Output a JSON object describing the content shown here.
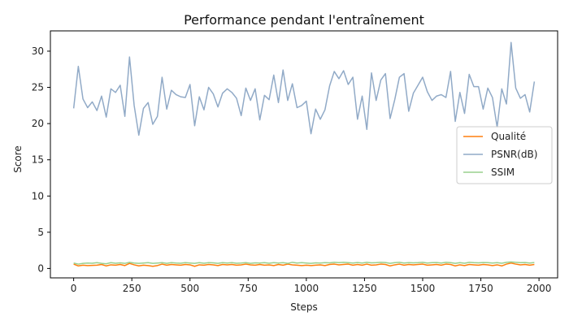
{
  "chart_data": {
    "type": "line",
    "title": "Performance pendant l'entraînement",
    "xlabel": "Steps",
    "ylabel": "Score",
    "xlim": [
      -100,
      2080
    ],
    "ylim": [
      -1.3,
      32.8
    ],
    "xticks": [
      0,
      250,
      500,
      750,
      1000,
      1250,
      1500,
      1750,
      2000
    ],
    "yticks": [
      0,
      5,
      10,
      15,
      20,
      25,
      30
    ],
    "grid": false,
    "legend_position": "center-right",
    "x": [
      0,
      20,
      40,
      60,
      80,
      100,
      120,
      140,
      160,
      180,
      200,
      220,
      240,
      260,
      280,
      300,
      320,
      340,
      360,
      380,
      400,
      420,
      440,
      460,
      480,
      500,
      520,
      540,
      560,
      580,
      600,
      620,
      640,
      660,
      680,
      700,
      720,
      740,
      760,
      780,
      800,
      820,
      840,
      860,
      880,
      900,
      920,
      940,
      960,
      980,
      1000,
      1020,
      1040,
      1060,
      1080,
      1100,
      1120,
      1140,
      1160,
      1180,
      1200,
      1220,
      1240,
      1260,
      1280,
      1300,
      1320,
      1340,
      1360,
      1380,
      1400,
      1420,
      1440,
      1460,
      1480,
      1500,
      1520,
      1540,
      1560,
      1580,
      1600,
      1620,
      1640,
      1660,
      1680,
      1700,
      1720,
      1740,
      1760,
      1780,
      1800,
      1820,
      1840,
      1860,
      1880,
      1900,
      1920,
      1940,
      1960,
      1980
    ],
    "series": [
      {
        "name": "Qualité",
        "color": "#ff7f0e",
        "values": [
          0.6,
          0.35,
          0.45,
          0.4,
          0.42,
          0.45,
          0.55,
          0.35,
          0.5,
          0.45,
          0.55,
          0.4,
          0.7,
          0.5,
          0.35,
          0.45,
          0.4,
          0.3,
          0.4,
          0.6,
          0.45,
          0.55,
          0.5,
          0.45,
          0.55,
          0.5,
          0.3,
          0.5,
          0.45,
          0.55,
          0.5,
          0.4,
          0.55,
          0.5,
          0.55,
          0.45,
          0.5,
          0.6,
          0.5,
          0.45,
          0.55,
          0.45,
          0.5,
          0.4,
          0.55,
          0.45,
          0.6,
          0.5,
          0.45,
          0.4,
          0.45,
          0.4,
          0.45,
          0.5,
          0.4,
          0.55,
          0.6,
          0.5,
          0.55,
          0.6,
          0.45,
          0.55,
          0.45,
          0.6,
          0.45,
          0.5,
          0.6,
          0.55,
          0.35,
          0.5,
          0.6,
          0.45,
          0.55,
          0.5,
          0.55,
          0.6,
          0.45,
          0.5,
          0.55,
          0.45,
          0.6,
          0.55,
          0.35,
          0.5,
          0.4,
          0.55,
          0.5,
          0.45,
          0.55,
          0.5,
          0.4,
          0.5,
          0.35,
          0.6,
          0.75,
          0.6,
          0.5,
          0.55,
          0.45,
          0.55
        ]
      },
      {
        "name": "PSNR(dB)",
        "color": "#91aac7",
        "values": [
          22.1,
          27.9,
          23.4,
          22.2,
          23.0,
          21.8,
          23.8,
          20.9,
          24.8,
          24.3,
          25.3,
          21.0,
          29.2,
          22.5,
          18.4,
          22.1,
          22.9,
          19.9,
          21.0,
          26.4,
          22.0,
          24.6,
          24.0,
          23.7,
          23.6,
          25.4,
          19.7,
          23.7,
          21.9,
          25.0,
          24.1,
          22.3,
          24.2,
          24.8,
          24.3,
          23.5,
          21.1,
          24.9,
          23.2,
          24.8,
          20.5,
          23.9,
          23.3,
          26.7,
          22.9,
          27.4,
          23.2,
          25.5,
          22.2,
          22.5,
          23.1,
          18.6,
          22.0,
          20.6,
          21.9,
          25.2,
          27.2,
          26.2,
          27.3,
          25.4,
          26.4,
          20.6,
          23.8,
          19.2,
          27.0,
          23.2,
          26.0,
          26.9,
          20.7,
          23.3,
          26.4,
          26.9,
          21.7,
          24.2,
          25.3,
          26.4,
          24.4,
          23.2,
          23.8,
          24.0,
          23.6,
          27.2,
          20.3,
          24.3,
          21.4,
          26.8,
          25.1,
          25.1,
          22.0,
          24.9,
          23.6,
          19.5,
          24.8,
          22.7,
          31.2,
          24.9,
          23.5,
          24.0,
          21.6,
          25.8
        ]
      },
      {
        "name": "SSIM",
        "color": "#98d08e",
        "values": [
          0.75,
          0.6,
          0.7,
          0.75,
          0.72,
          0.8,
          0.7,
          0.65,
          0.8,
          0.72,
          0.78,
          0.7,
          0.85,
          0.75,
          0.7,
          0.75,
          0.8,
          0.7,
          0.75,
          0.8,
          0.7,
          0.8,
          0.75,
          0.72,
          0.8,
          0.75,
          0.7,
          0.8,
          0.72,
          0.8,
          0.78,
          0.7,
          0.8,
          0.75,
          0.8,
          0.72,
          0.75,
          0.8,
          0.7,
          0.78,
          0.75,
          0.8,
          0.72,
          0.8,
          0.75,
          0.8,
          0.7,
          0.85,
          0.75,
          0.8,
          0.75,
          0.7,
          0.78,
          0.75,
          0.8,
          0.78,
          0.85,
          0.8,
          0.85,
          0.8,
          0.75,
          0.82,
          0.75,
          0.85,
          0.78,
          0.8,
          0.85,
          0.82,
          0.7,
          0.8,
          0.85,
          0.75,
          0.8,
          0.78,
          0.8,
          0.85,
          0.75,
          0.8,
          0.82,
          0.75,
          0.85,
          0.8,
          0.7,
          0.8,
          0.72,
          0.85,
          0.8,
          0.78,
          0.82,
          0.8,
          0.75,
          0.8,
          0.72,
          0.85,
          0.9,
          0.85,
          0.8,
          0.82,
          0.75,
          0.82
        ]
      }
    ]
  }
}
